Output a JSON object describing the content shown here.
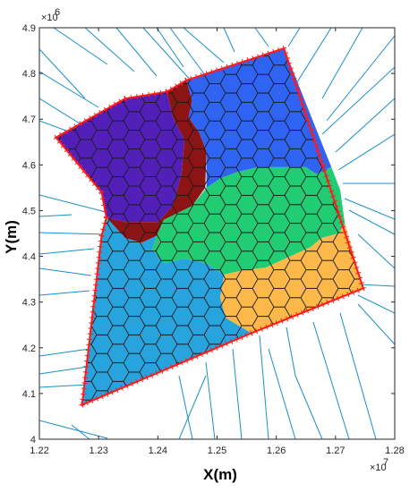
{
  "chart_data": {
    "type": "map",
    "title": "",
    "xlabel": "X(m)",
    "ylabel": "Y(m)",
    "x_multiplier_label": "×10",
    "x_multiplier_exp": "7",
    "y_multiplier_label": "×10",
    "y_multiplier_exp": "6",
    "xlim": [
      1.22,
      1.28
    ],
    "ylim": [
      4.0,
      4.9
    ],
    "x_ticks": [
      1.22,
      1.23,
      1.24,
      1.25,
      1.26,
      1.27,
      1.28
    ],
    "x_tick_labels": [
      "1.22",
      "1.23",
      "1.24",
      "1.25",
      "1.26",
      "1.27",
      "1.28"
    ],
    "y_ticks": [
      4.0,
      4.1,
      4.2,
      4.3,
      4.4,
      4.5,
      4.6,
      4.7,
      4.8,
      4.9
    ],
    "y_tick_labels": [
      "4",
      "4.1",
      "4.2",
      "4.3",
      "4.4",
      "4.5",
      "4.6",
      "4.7",
      "4.8",
      "4.9"
    ],
    "boundary": [
      [
        1.2272,
        4.075
      ],
      [
        1.2305,
        4.445
      ],
      [
        1.2313,
        4.485
      ],
      [
        1.2305,
        4.54
      ],
      [
        1.2228,
        4.66
      ],
      [
        1.2345,
        4.745
      ],
      [
        1.2415,
        4.76
      ],
      [
        1.2448,
        4.785
      ],
      [
        1.2613,
        4.855
      ],
      [
        1.2747,
        4.33
      ],
      [
        1.2558,
        4.232
      ],
      [
        1.2272,
        4.075
      ]
    ],
    "boundary_color": "#ff1a1a",
    "edge_color": "#1a8fc9",
    "cell_edge_color": "#1a1a1a",
    "region_colors": {
      "purple": "#5220b8",
      "dark_red": "#8c1414",
      "blue": "#2f63f2",
      "green": "#21cc73",
      "cyan": "#27a4de",
      "orange": "#fdb84a"
    },
    "regions": [
      {
        "color": "purple",
        "polygon": [
          [
            1.2228,
            4.66
          ],
          [
            1.2345,
            4.745
          ],
          [
            1.2415,
            4.76
          ],
          [
            1.2425,
            4.705
          ],
          [
            1.2445,
            4.655
          ],
          [
            1.244,
            4.58
          ],
          [
            1.2425,
            4.51
          ],
          [
            1.24,
            4.475
          ],
          [
            1.2345,
            4.475
          ],
          [
            1.2313,
            4.485
          ],
          [
            1.2305,
            4.54
          ]
        ]
      },
      {
        "color": "dark_red",
        "polygon": [
          [
            1.2415,
            4.76
          ],
          [
            1.2448,
            4.785
          ],
          [
            1.2458,
            4.74
          ],
          [
            1.2452,
            4.705
          ],
          [
            1.247,
            4.67
          ],
          [
            1.2482,
            4.63
          ],
          [
            1.248,
            4.55
          ],
          [
            1.2458,
            4.51
          ],
          [
            1.241,
            4.48
          ],
          [
            1.2398,
            4.445
          ],
          [
            1.2373,
            4.43
          ],
          [
            1.2345,
            4.44
          ],
          [
            1.2313,
            4.485
          ],
          [
            1.2345,
            4.475
          ],
          [
            1.24,
            4.475
          ],
          [
            1.2425,
            4.51
          ],
          [
            1.244,
            4.58
          ],
          [
            1.2445,
            4.655
          ],
          [
            1.2425,
            4.705
          ]
        ]
      },
      {
        "color": "blue",
        "polygon": [
          [
            1.2448,
            4.785
          ],
          [
            1.2613,
            4.855
          ],
          [
            1.2693,
            4.595
          ],
          [
            1.2668,
            4.58
          ],
          [
            1.265,
            4.595
          ],
          [
            1.257,
            4.595
          ],
          [
            1.2535,
            4.585
          ],
          [
            1.2505,
            4.57
          ],
          [
            1.2482,
            4.55
          ],
          [
            1.2482,
            4.63
          ],
          [
            1.247,
            4.67
          ],
          [
            1.2452,
            4.705
          ],
          [
            1.2458,
            4.74
          ]
        ]
      },
      {
        "color": "green",
        "polygon": [
          [
            1.2482,
            4.55
          ],
          [
            1.2505,
            4.57
          ],
          [
            1.2535,
            4.585
          ],
          [
            1.257,
            4.595
          ],
          [
            1.265,
            4.595
          ],
          [
            1.2668,
            4.58
          ],
          [
            1.2693,
            4.595
          ],
          [
            1.2708,
            4.545
          ],
          [
            1.2716,
            4.47
          ],
          [
            1.2705,
            4.45
          ],
          [
            1.2676,
            4.44
          ],
          [
            1.2658,
            4.42
          ],
          [
            1.2615,
            4.395
          ],
          [
            1.2582,
            4.375
          ],
          [
            1.2545,
            4.37
          ],
          [
            1.2512,
            4.36
          ],
          [
            1.2482,
            4.385
          ],
          [
            1.2445,
            4.395
          ],
          [
            1.2412,
            4.385
          ],
          [
            1.239,
            4.415
          ],
          [
            1.2398,
            4.445
          ],
          [
            1.241,
            4.48
          ],
          [
            1.2458,
            4.51
          ]
        ]
      },
      {
        "color": "orange",
        "polygon": [
          [
            1.2716,
            4.47
          ],
          [
            1.2747,
            4.33
          ],
          [
            1.2558,
            4.232
          ],
          [
            1.2515,
            4.265
          ],
          [
            1.2505,
            4.31
          ],
          [
            1.2512,
            4.36
          ],
          [
            1.2545,
            4.37
          ],
          [
            1.2582,
            4.375
          ],
          [
            1.2615,
            4.395
          ],
          [
            1.2658,
            4.42
          ],
          [
            1.2676,
            4.44
          ],
          [
            1.2705,
            4.45
          ]
        ]
      },
      {
        "color": "cyan",
        "polygon": [
          [
            1.2272,
            4.075
          ],
          [
            1.2558,
            4.232
          ],
          [
            1.2515,
            4.265
          ],
          [
            1.2505,
            4.31
          ],
          [
            1.2512,
            4.36
          ],
          [
            1.2482,
            4.385
          ],
          [
            1.2445,
            4.395
          ],
          [
            1.2412,
            4.385
          ],
          [
            1.239,
            4.415
          ],
          [
            1.2398,
            4.445
          ],
          [
            1.2373,
            4.43
          ],
          [
            1.2345,
            4.44
          ],
          [
            1.2313,
            4.485
          ],
          [
            1.2305,
            4.445
          ]
        ]
      }
    ],
    "grid": false,
    "legend": "none"
  }
}
